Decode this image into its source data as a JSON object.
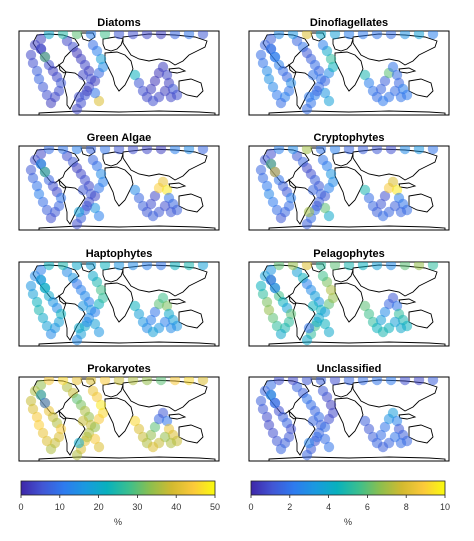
{
  "colormap": [
    "#3e26a8",
    "#4256d4",
    "#2d7bef",
    "#1a9adf",
    "#08b1bd",
    "#3bbf8e",
    "#8cbf4e",
    "#d2ba30",
    "#fbc93a",
    "#f9fb0e"
  ],
  "chart_data": [
    {
      "type": "scatter",
      "title": "Diatoms",
      "colorbar": 0,
      "values": [
        3,
        4,
        5,
        3,
        4,
        6,
        5,
        4,
        3,
        5,
        6,
        8,
        7,
        5,
        4,
        3,
        3,
        4,
        5,
        2,
        3,
        4,
        3,
        5,
        4,
        6,
        5,
        4,
        3,
        8,
        14,
        18,
        12,
        9,
        40,
        10,
        22,
        6,
        5,
        4,
        3,
        2,
        2,
        3,
        4,
        3,
        6,
        5,
        4,
        3,
        4,
        5,
        20,
        25,
        30,
        12,
        28,
        6,
        5,
        4,
        3,
        8,
        10,
        6,
        4,
        3,
        5,
        4,
        30
      ]
    },
    {
      "type": "scatter",
      "title": "Dinoflagellates",
      "colorbar": 0,
      "values": [
        8,
        10,
        12,
        9,
        8,
        14,
        10,
        12,
        9,
        11,
        13,
        15,
        14,
        10,
        9,
        8,
        7,
        8,
        10,
        6,
        7,
        9,
        8,
        10,
        9,
        12,
        10,
        9,
        8,
        14,
        22,
        26,
        20,
        12,
        18,
        16,
        24,
        12,
        10,
        9,
        8,
        7,
        30,
        10,
        9,
        8,
        12,
        11,
        10,
        9,
        10,
        11,
        14,
        16,
        40,
        20,
        18,
        12,
        11,
        10,
        9,
        15,
        18,
        12,
        10,
        8,
        11,
        10,
        12
      ]
    },
    {
      "type": "scatter",
      "title": "Green Algae",
      "colorbar": 0,
      "values": [
        5,
        6,
        8,
        5,
        4,
        10,
        8,
        6,
        5,
        7,
        9,
        12,
        10,
        8,
        6,
        5,
        4,
        5,
        6,
        3,
        4,
        5,
        4,
        6,
        5,
        8,
        7,
        5,
        4,
        10,
        12,
        14,
        10,
        8,
        12,
        16,
        14,
        8,
        7,
        6,
        5,
        4,
        45,
        42,
        48,
        10,
        8,
        7,
        6,
        5,
        6,
        7,
        9,
        10,
        12,
        8,
        10,
        6,
        5,
        4,
        3,
        12,
        14,
        8,
        6,
        5,
        18,
        15,
        28
      ]
    },
    {
      "type": "scatter",
      "title": "Cryptophytes",
      "colorbar": 0,
      "values": [
        6,
        8,
        10,
        7,
        6,
        12,
        9,
        8,
        6,
        9,
        11,
        13,
        11,
        9,
        8,
        6,
        5,
        6,
        8,
        4,
        5,
        7,
        6,
        8,
        7,
        10,
        9,
        7,
        6,
        12,
        14,
        16,
        12,
        10,
        20,
        30,
        24,
        9,
        8,
        7,
        6,
        5,
        44,
        40,
        48,
        12,
        10,
        9,
        8,
        7,
        8,
        9,
        12,
        14,
        35,
        10,
        12,
        8,
        7,
        6,
        5,
        14,
        16,
        10,
        8,
        6,
        35,
        30,
        40
      ]
    },
    {
      "type": "scatter",
      "title": "Haptophytes",
      "colorbar": 0,
      "values": [
        15,
        18,
        20,
        16,
        14,
        22,
        18,
        16,
        14,
        18,
        20,
        24,
        22,
        18,
        16,
        14,
        12,
        14,
        16,
        10,
        12,
        14,
        12,
        16,
        14,
        20,
        18,
        14,
        12,
        22,
        26,
        28,
        24,
        20,
        16,
        18,
        22,
        18,
        16,
        14,
        12,
        10,
        30,
        28,
        32,
        20,
        18,
        16,
        14,
        12,
        16,
        18,
        22,
        24,
        20,
        18,
        22,
        16,
        14,
        12,
        10,
        22,
        24,
        18,
        16,
        14,
        20,
        18,
        22
      ]
    },
    {
      "type": "scatter",
      "title": "Pelagophytes",
      "colorbar": 0,
      "values": [
        20,
        24,
        28,
        22,
        18,
        30,
        26,
        24,
        20,
        26,
        30,
        34,
        32,
        26,
        22,
        18,
        16,
        18,
        22,
        12,
        14,
        18,
        16,
        22,
        20,
        28,
        26,
        20,
        18,
        30,
        34,
        36,
        32,
        28,
        20,
        22,
        30,
        28,
        26,
        22,
        18,
        14,
        8,
        6,
        10,
        26,
        24,
        22,
        20,
        18,
        22,
        24,
        30,
        34,
        40,
        26,
        30,
        24,
        22,
        18,
        14,
        30,
        34,
        26,
        22,
        20,
        10,
        8,
        12
      ]
    },
    {
      "type": "scatter",
      "title": "Prokaryotes",
      "colorbar": 0,
      "values": [
        38,
        40,
        42,
        38,
        36,
        44,
        40,
        38,
        36,
        40,
        42,
        45,
        44,
        40,
        38,
        36,
        34,
        36,
        38,
        30,
        32,
        36,
        34,
        38,
        36,
        42,
        40,
        36,
        34,
        44,
        46,
        48,
        44,
        42,
        40,
        44,
        46,
        40,
        38,
        36,
        34,
        30,
        8,
        6,
        10,
        42,
        40,
        38,
        36,
        34,
        38,
        40,
        44,
        46,
        42,
        40,
        44,
        38,
        36,
        34,
        30,
        44,
        46,
        40,
        38,
        36,
        20,
        18,
        10
      ]
    },
    {
      "type": "scatter",
      "title": "Unclassified",
      "colorbar": 1,
      "values": [
        1.5,
        1.2,
        1.0,
        1.4,
        1.6,
        1.0,
        1.2,
        1.4,
        1.6,
        1.2,
        1.0,
        0.8,
        0.9,
        1.2,
        1.4,
        1.6,
        1.8,
        1.6,
        1.4,
        2.0,
        1.8,
        1.6,
        1.8,
        1.4,
        1.6,
        1.0,
        1.2,
        1.6,
        1.8,
        1.0,
        0.8,
        0.6,
        0.9,
        1.2,
        2.0,
        1.8,
        1.4,
        1.2,
        1.4,
        1.6,
        1.8,
        2.0,
        3.0,
        3.5,
        2.5,
        1.2,
        1.4,
        1.6,
        1.8,
        2.0,
        1.6,
        1.4,
        1.0,
        0.8,
        1.2,
        1.4,
        1.0,
        1.6,
        1.8,
        2.0,
        2.2,
        1.0,
        0.8,
        1.4,
        1.6,
        1.8,
        2.5,
        3.0,
        2.0
      ]
    }
  ],
  "colorbars": [
    {
      "range": [
        0,
        50
      ],
      "ticks": [
        "0",
        "10",
        "20",
        "30",
        "40",
        "50"
      ],
      "unit": "%"
    },
    {
      "range": [
        0,
        10
      ],
      "ticks": [
        "0",
        "2",
        "4",
        "6",
        "8",
        "10"
      ],
      "unit": "%"
    }
  ]
}
